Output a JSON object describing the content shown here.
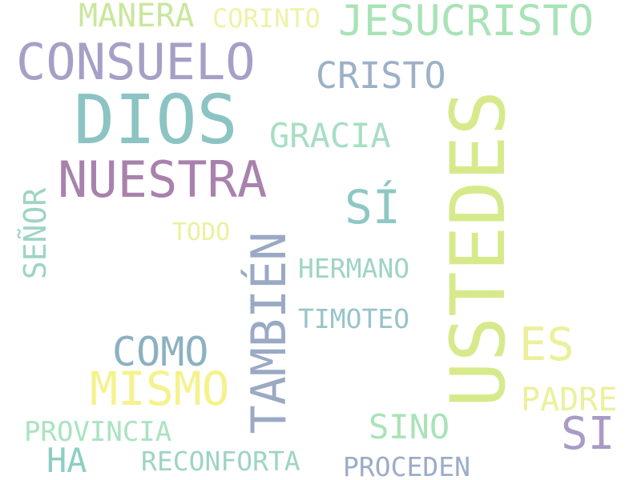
{
  "words": [
    {
      "text": "DIOS",
      "color": "#8cc3c3"
    },
    {
      "text": "USTEDES",
      "color": "#d6ea8c"
    },
    {
      "text": "CONSUELO",
      "color": "#a69fc6"
    },
    {
      "text": "NUESTRA",
      "color": "#a882ad"
    },
    {
      "text": "JESUCRISTO",
      "color": "#a9e3b7"
    },
    {
      "text": "TAMBIÉN",
      "color": "#9aa9c4"
    },
    {
      "text": "MISMO",
      "color": "#f5f28d"
    },
    {
      "text": "SÍ",
      "color": "#8ec8c4"
    },
    {
      "text": "COMO",
      "color": "#8cb1c0"
    },
    {
      "text": "ES",
      "color": "#ecf09c"
    },
    {
      "text": "MANERA",
      "color": "#c9e79c"
    },
    {
      "text": "CRISTO",
      "color": "#9cb1c6"
    },
    {
      "text": "GRACIA",
      "color": "#a7dec4"
    },
    {
      "text": "SI",
      "color": "#a99bc4"
    },
    {
      "text": "SINO",
      "color": "#a9e3b7"
    },
    {
      "text": "PADRE",
      "color": "#ecf09c"
    },
    {
      "text": "SEÑOR",
      "color": "#9ed4c4"
    },
    {
      "text": "HA",
      "color": "#8ccfc2"
    },
    {
      "text": "HERMANO",
      "color": "#9ed4c4"
    },
    {
      "text": "TIMOTEO",
      "color": "#97c4c8"
    },
    {
      "text": "PROVINCIA",
      "color": "#a9e3c0"
    },
    {
      "text": "RECONFORTA",
      "color": "#9ed4c4"
    },
    {
      "text": "PROCEDEN",
      "color": "#9cacc8"
    },
    {
      "text": "CORINTO",
      "color": "#eff2a6"
    },
    {
      "text": "TODO",
      "color": "#ecf09c"
    }
  ]
}
